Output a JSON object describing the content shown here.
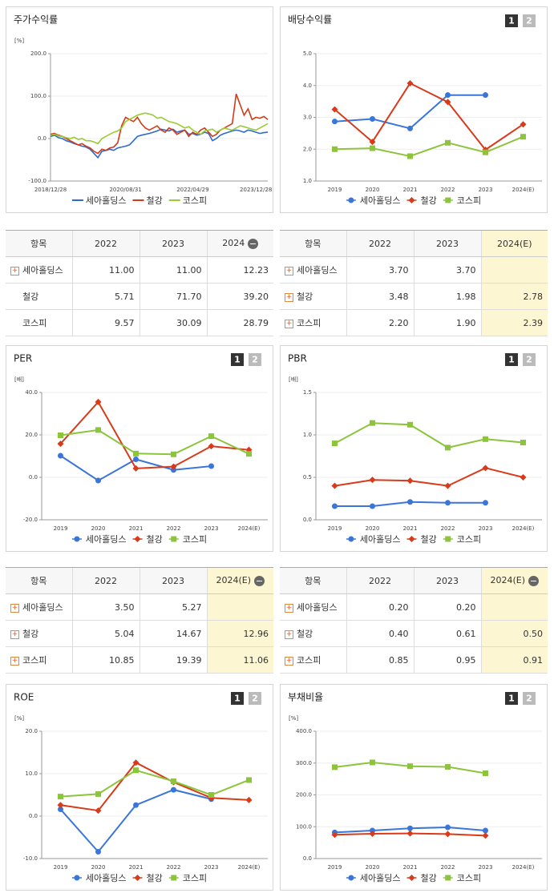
{
  "chart_data": [
    {
      "type": "line",
      "title": "주가수익률",
      "y_unit": "[%]",
      "categories": [
        "2018/12/28",
        null,
        null,
        null,
        null,
        null,
        null,
        null,
        null,
        null,
        null,
        null,
        null,
        null,
        null,
        null,
        null,
        null,
        null,
        "2020/08/31",
        null,
        null,
        null,
        null,
        null,
        null,
        null,
        null,
        null,
        null,
        null,
        null,
        null,
        null,
        null,
        null,
        "2022/04/29",
        null,
        null,
        null,
        null,
        null,
        null,
        null,
        null,
        null,
        null,
        null,
        null,
        null,
        null,
        null,
        "2023/12/28",
        null,
        null,
        null
      ],
      "ylim": [
        -100,
        200
      ],
      "yticks": [
        {
          "value": -100,
          "label": "-100.0"
        },
        {
          "value": 0,
          "label": "0.0"
        },
        {
          "value": 100,
          "label": "100.0"
        },
        {
          "value": 200,
          "label": "200.0"
        }
      ],
      "grid": true,
      "series": [
        {
          "name": "세아홀딩스",
          "color": "#2e6ad1",
          "values": [
            5,
            8,
            2,
            0,
            -5,
            -8,
            -12,
            -15,
            -18,
            -20,
            -25,
            -35,
            -45,
            -30,
            -28,
            -25,
            -28,
            -22,
            -20,
            -18,
            -15,
            -5,
            5,
            8,
            10,
            12,
            15,
            18,
            22,
            20,
            18,
            22,
            15,
            18,
            20,
            10,
            12,
            8,
            10,
            15,
            12,
            -5,
            0,
            8,
            12,
            15,
            18,
            20,
            18,
            15,
            20,
            18,
            15,
            12,
            14,
            15
          ]
        },
        {
          "name": "철강",
          "color": "#d23b15",
          "values": [
            10,
            12,
            8,
            5,
            0,
            -5,
            -10,
            -15,
            -12,
            -18,
            -22,
            -30,
            -35,
            -25,
            -28,
            -22,
            -20,
            -10,
            30,
            50,
            45,
            40,
            50,
            35,
            25,
            20,
            25,
            30,
            20,
            15,
            25,
            20,
            10,
            15,
            20,
            5,
            15,
            10,
            20,
            25,
            15,
            5,
            10,
            20,
            25,
            30,
            35,
            105,
            80,
            55,
            70,
            45,
            50,
            48,
            52,
            45
          ]
        },
        {
          "name": "코스피",
          "color": "#99cc33",
          "values": [
            8,
            10,
            6,
            5,
            2,
            0,
            3,
            -2,
            0,
            -5,
            -5,
            -8,
            -12,
            0,
            5,
            10,
            15,
            18,
            25,
            40,
            45,
            50,
            55,
            58,
            60,
            58,
            55,
            48,
            50,
            45,
            40,
            38,
            35,
            30,
            25,
            28,
            20,
            15,
            10,
            18,
            20,
            22,
            15,
            20,
            25,
            22,
            20,
            25,
            30,
            28,
            25,
            22,
            20,
            25,
            30,
            35
          ]
        }
      ]
    },
    {
      "type": "line",
      "title": "배당수익률",
      "buttons": [
        "1",
        "2"
      ],
      "y_unit": null,
      "categories": [
        "2019",
        "2020",
        "2021",
        "2022",
        "2023",
        "2024(E)"
      ],
      "ylim": [
        1,
        5
      ],
      "yticks": [
        {
          "value": 1,
          "label": "1.0"
        },
        {
          "value": 2,
          "label": "2.0"
        },
        {
          "value": 3,
          "label": "3.0"
        },
        {
          "value": 4,
          "label": "4.0"
        },
        {
          "value": 5,
          "label": "5.0"
        }
      ],
      "grid": true,
      "series": [
        {
          "name": "세아홀딩스",
          "color": "#3a75d9",
          "marker": "circle",
          "values": [
            2.87,
            2.95,
            2.65,
            3.7,
            3.7,
            null
          ]
        },
        {
          "name": "철강",
          "color": "#d83a1a",
          "marker": "diamond",
          "values": [
            3.25,
            2.23,
            4.07,
            3.48,
            1.98,
            2.78
          ]
        },
        {
          "name": "코스피",
          "color": "#8cc43c",
          "marker": "square",
          "values": [
            2.0,
            2.03,
            1.78,
            2.2,
            1.9,
            2.39
          ]
        }
      ]
    },
    {
      "type": "line",
      "title": "PER",
      "buttons": [
        "1",
        "2"
      ],
      "y_unit": "[배]",
      "categories": [
        "2019",
        "2020",
        "2021",
        "2022",
        "2023",
        "2024(E)"
      ],
      "ylim": [
        -20,
        40
      ],
      "yticks": [
        {
          "value": -20,
          "label": "-20.0"
        },
        {
          "value": 0,
          "label": "0.0"
        },
        {
          "value": 20,
          "label": "20.0"
        },
        {
          "value": 40,
          "label": "40.0"
        }
      ],
      "grid": true,
      "series": [
        {
          "name": "세아홀딩스",
          "color": "#3a75d9",
          "marker": "circle",
          "values": [
            10.2,
            -1.5,
            8.5,
            3.5,
            5.27,
            null
          ]
        },
        {
          "name": "철강",
          "color": "#d83a1a",
          "marker": "diamond",
          "values": [
            15.8,
            35.5,
            4.2,
            5.04,
            14.67,
            12.96
          ]
        },
        {
          "name": "코스피",
          "color": "#8cc43c",
          "marker": "square",
          "values": [
            19.8,
            22.3,
            11.2,
            10.85,
            19.39,
            11.06
          ]
        }
      ]
    },
    {
      "type": "line",
      "title": "PBR",
      "buttons": [
        "1",
        "2"
      ],
      "y_unit": "[배]",
      "categories": [
        "2019",
        "2020",
        "2021",
        "2022",
        "2023",
        "2024(E)"
      ],
      "ylim": [
        0,
        1.5
      ],
      "yticks": [
        {
          "value": 0,
          "label": "0.0"
        },
        {
          "value": 0.5,
          "label": "0.5"
        },
        {
          "value": 1,
          "label": "1.0"
        },
        {
          "value": 1.5,
          "label": "1.5"
        }
      ],
      "grid": true,
      "series": [
        {
          "name": "세아홀딩스",
          "color": "#3a75d9",
          "marker": "circle",
          "values": [
            0.16,
            0.16,
            0.21,
            0.2,
            0.2,
            null
          ]
        },
        {
          "name": "철강",
          "color": "#d83a1a",
          "marker": "diamond",
          "values": [
            0.4,
            0.47,
            0.46,
            0.4,
            0.61,
            0.5
          ]
        },
        {
          "name": "코스피",
          "color": "#8cc43c",
          "marker": "square",
          "values": [
            0.9,
            1.14,
            1.12,
            0.85,
            0.95,
            0.91
          ]
        }
      ]
    },
    {
      "type": "line",
      "title": "ROE",
      "buttons": [
        "1",
        "2"
      ],
      "y_unit": "[%]",
      "categories": [
        "2019",
        "2020",
        "2021",
        "2022",
        "2023",
        "2024(E)"
      ],
      "ylim": [
        -10,
        20
      ],
      "yticks": [
        {
          "value": -10,
          "label": "-10.0"
        },
        {
          "value": 0,
          "label": "0.0"
        },
        {
          "value": 10,
          "label": "10.0"
        },
        {
          "value": 20,
          "label": "20.0"
        }
      ],
      "grid": true,
      "series": [
        {
          "name": "세아홀딩스",
          "color": "#3a75d9",
          "marker": "circle",
          "values": [
            1.6,
            -8.4,
            2.6,
            6.2,
            4.0,
            null
          ]
        },
        {
          "name": "철강",
          "color": "#d83a1a",
          "marker": "diamond",
          "values": [
            2.6,
            1.3,
            12.6,
            8.0,
            4.3,
            3.8
          ]
        },
        {
          "name": "코스피",
          "color": "#8cc43c",
          "marker": "square",
          "values": [
            4.6,
            5.2,
            10.8,
            8.2,
            5.0,
            8.5
          ]
        }
      ]
    },
    {
      "type": "line",
      "title": "부채비율",
      "buttons": [
        "1",
        "2"
      ],
      "y_unit": "[%]",
      "categories": [
        "2019",
        "2020",
        "2021",
        "2022",
        "2023",
        "2024(E)"
      ],
      "ylim": [
        0,
        400
      ],
      "yticks": [
        {
          "value": 0,
          "label": "0.0"
        },
        {
          "value": 100,
          "label": "100.0"
        },
        {
          "value": 200,
          "label": "200.0"
        },
        {
          "value": 300,
          "label": "300.0"
        },
        {
          "value": 400,
          "label": "400.0"
        }
      ],
      "grid": true,
      "series": [
        {
          "name": "세아홀딩스",
          "color": "#3a75d9",
          "marker": "circle",
          "values": [
            82,
            88,
            95,
            98,
            88,
            null
          ]
        },
        {
          "name": "철강",
          "color": "#d83a1a",
          "marker": "diamond",
          "values": [
            75,
            78,
            79,
            77,
            72,
            null
          ]
        },
        {
          "name": "코스피",
          "color": "#8cc43c",
          "marker": "square",
          "values": [
            287,
            302,
            290,
            288,
            268,
            null
          ]
        }
      ]
    }
  ],
  "tables": [
    {
      "columns": [
        "항목",
        "2022",
        "2023",
        "2024"
      ],
      "collapsible": true,
      "highlight_last_column": false,
      "rows": [
        {
          "name": "세아홀딩스",
          "expandable": true,
          "values": [
            "11.00",
            "11.00",
            "12.23"
          ]
        },
        {
          "name": "철강",
          "expandable": false,
          "values": [
            "5.71",
            "71.70",
            "39.20"
          ]
        },
        {
          "name": "코스피",
          "expandable": false,
          "values": [
            "9.57",
            "30.09",
            "28.79"
          ]
        }
      ]
    },
    {
      "columns": [
        "항목",
        "2022",
        "2023",
        "2024(E)"
      ],
      "collapsible": false,
      "highlight_last_column": true,
      "rows": [
        {
          "name": "세아홀딩스",
          "expandable": true,
          "values": [
            "3.70",
            "3.70",
            null
          ]
        },
        {
          "name": "철강",
          "expandable": true,
          "values": [
            "3.48",
            "1.98",
            "2.78"
          ]
        },
        {
          "name": "코스피",
          "expandable": true,
          "values": [
            "2.20",
            "1.90",
            "2.39"
          ]
        }
      ]
    },
    {
      "columns": [
        "항목",
        "2022",
        "2023",
        "2024(E)"
      ],
      "collapsible": true,
      "highlight_last_column": true,
      "rows": [
        {
          "name": "세아홀딩스",
          "expandable": true,
          "values": [
            "3.50",
            "5.27",
            null
          ]
        },
        {
          "name": "철강",
          "expandable": true,
          "values": [
            "5.04",
            "14.67",
            "12.96"
          ]
        },
        {
          "name": "코스피",
          "expandable": true,
          "values": [
            "10.85",
            "19.39",
            "11.06"
          ]
        }
      ]
    },
    {
      "columns": [
        "항목",
        "2022",
        "2023",
        "2024(E)"
      ],
      "collapsible": true,
      "highlight_last_column": true,
      "rows": [
        {
          "name": "세아홀딩스",
          "expandable": true,
          "values": [
            "0.20",
            "0.20",
            null
          ]
        },
        {
          "name": "철강",
          "expandable": true,
          "values": [
            "0.40",
            "0.61",
            "0.50"
          ]
        },
        {
          "name": "코스피",
          "expandable": true,
          "values": [
            "0.85",
            "0.95",
            "0.91"
          ]
        }
      ]
    }
  ]
}
